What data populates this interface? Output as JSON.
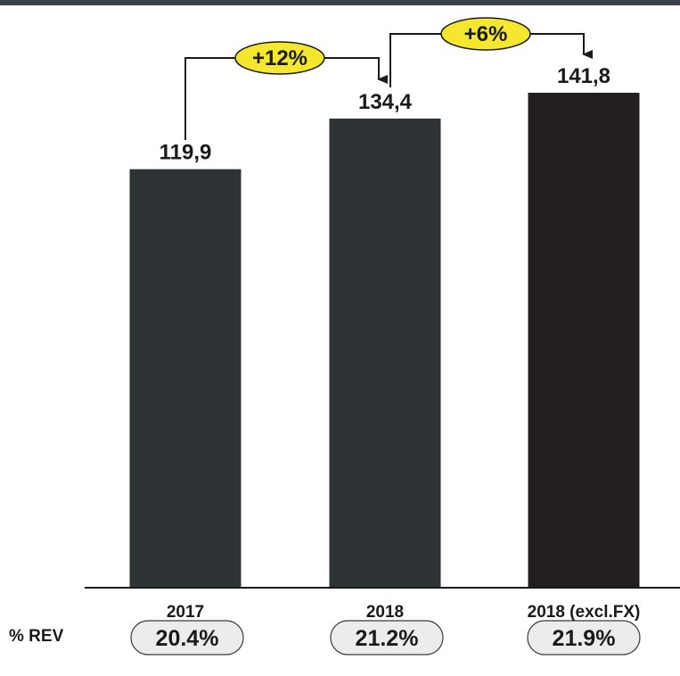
{
  "chart_data": {
    "type": "bar",
    "categories": [
      "2017",
      "2018",
      "2018 (excl.FX)"
    ],
    "values": [
      119.9,
      134.4,
      141.8
    ],
    "value_labels": [
      "119,9",
      "134,4",
      "141,8"
    ],
    "colors": [
      "#2e3436",
      "#2e3436",
      "#231f20"
    ],
    "ylim": [
      0,
      141.8
    ],
    "growth_annotations": [
      {
        "from": 0,
        "to": 1,
        "label": "+12%"
      },
      {
        "from": 1,
        "to": 2,
        "label": "+6%"
      }
    ],
    "rev_row_label": "% REV",
    "rev_percentages": [
      "20.4%",
      "21.2%",
      "21.9%"
    ],
    "accent_color": "#f5e62e"
  }
}
